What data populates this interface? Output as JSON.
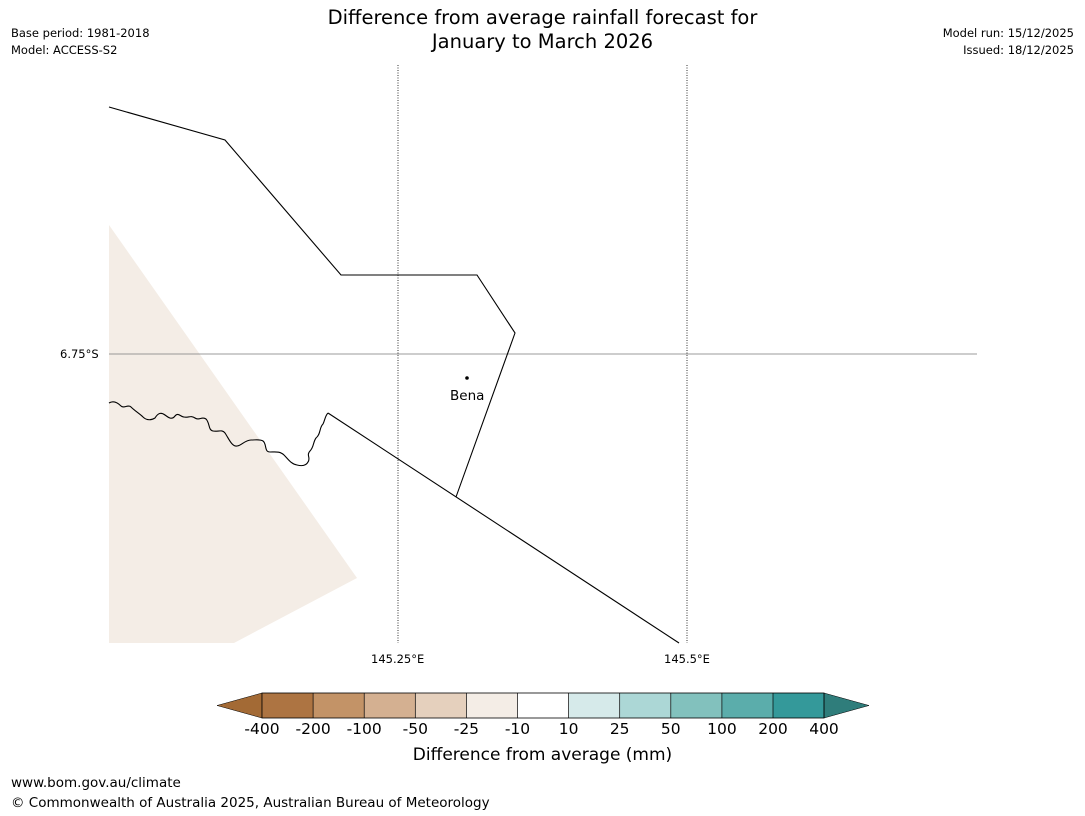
{
  "title": {
    "line1": "Difference from average rainfall forecast for",
    "line2": "January to March 2026"
  },
  "meta": {
    "base_period": "Base period: 1981-2018",
    "model": "Model: ACCESS-S2",
    "model_run": "Model run: 15/12/2025",
    "issued": "Issued: 18/12/2025"
  },
  "map": {
    "lat_label": "6.75°S",
    "lon_labels": [
      "145.25°E",
      "145.5°E"
    ],
    "place": "Bena"
  },
  "colorbar": {
    "title": "Difference from average (mm)",
    "ticks": [
      "-400",
      "-200",
      "-100",
      "-50",
      "-25",
      "-10",
      "10",
      "25",
      "50",
      "100",
      "200",
      "400"
    ],
    "colors": [
      "#a36a35",
      "#ad7442",
      "#c39367",
      "#d4b091",
      "#e5d0bd",
      "#f4ede6",
      "#ffffff",
      "#d6eaea",
      "#acd7d6",
      "#82c1bd",
      "#5badab",
      "#34999a",
      "#2f7d7b"
    ]
  },
  "footer": {
    "url": "www.bom.gov.au/climate",
    "copyright": "© Commonwealth of Australia 2025, Australian Bureau of Meteorology"
  }
}
